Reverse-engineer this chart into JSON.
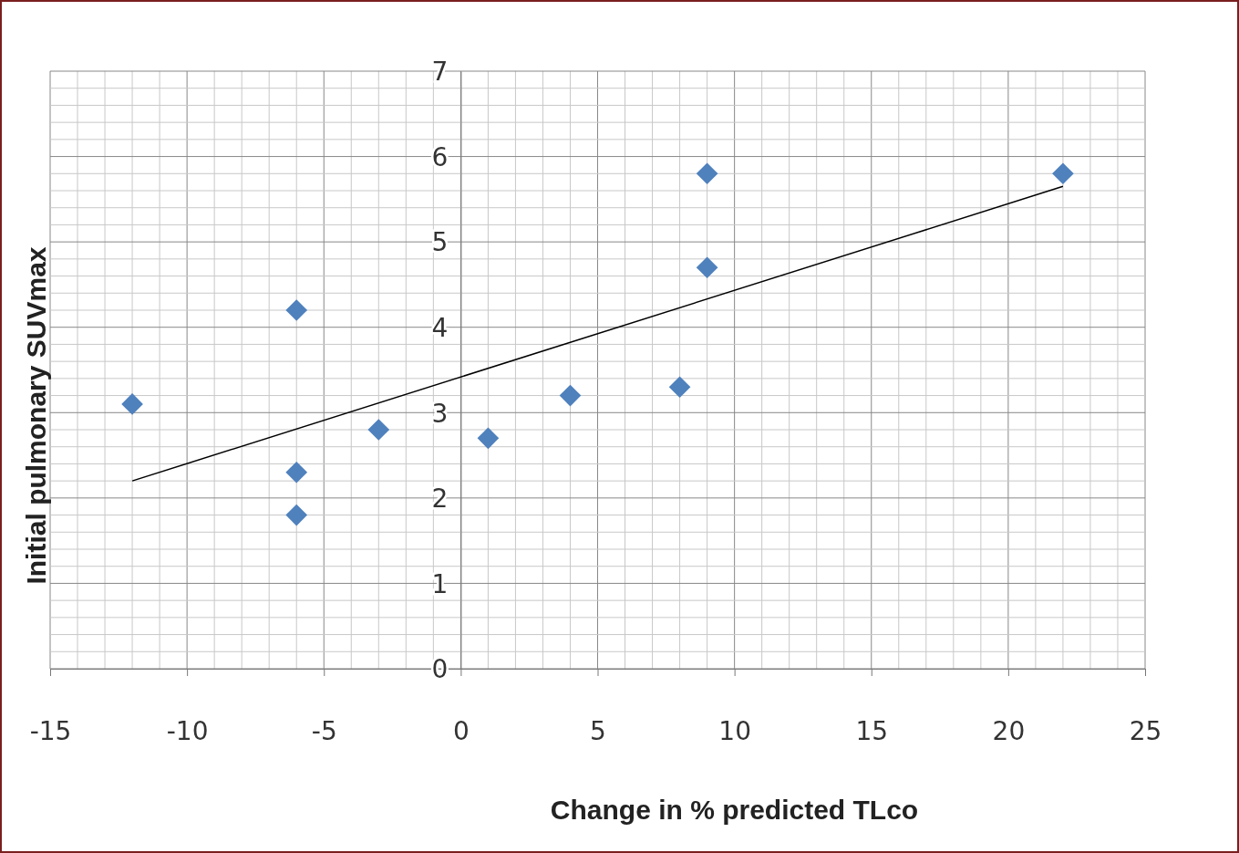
{
  "chart_data": {
    "type": "scatter",
    "xlabel": "Change in % predicted TLco",
    "ylabel": "Initial pulmonary SUVmax",
    "xlim": [
      -15,
      25
    ],
    "xticks": [
      -15,
      -10,
      -5,
      0,
      5,
      10,
      15,
      20,
      25
    ],
    "ylim": [
      0,
      7
    ],
    "yticks": [
      0,
      1,
      2,
      3,
      4,
      5,
      6,
      7
    ],
    "grid": true,
    "series": [
      {
        "color": "#4f81bd",
        "marker": "diamond",
        "x": [
          -12,
          -6,
          -6,
          -6,
          -3,
          1,
          4,
          8,
          9,
          9,
          22
        ],
        "values": [
          3.1,
          4.2,
          2.3,
          1.8,
          2.8,
          2.7,
          3.2,
          3.3,
          5.8,
          4.7,
          5.8
        ]
      },
      {
        "type": "line",
        "color": "#000000",
        "marker": "none",
        "line_style": "solid",
        "x": [
          -12,
          22
        ],
        "values": [
          2.2,
          5.65
        ]
      }
    ]
  }
}
